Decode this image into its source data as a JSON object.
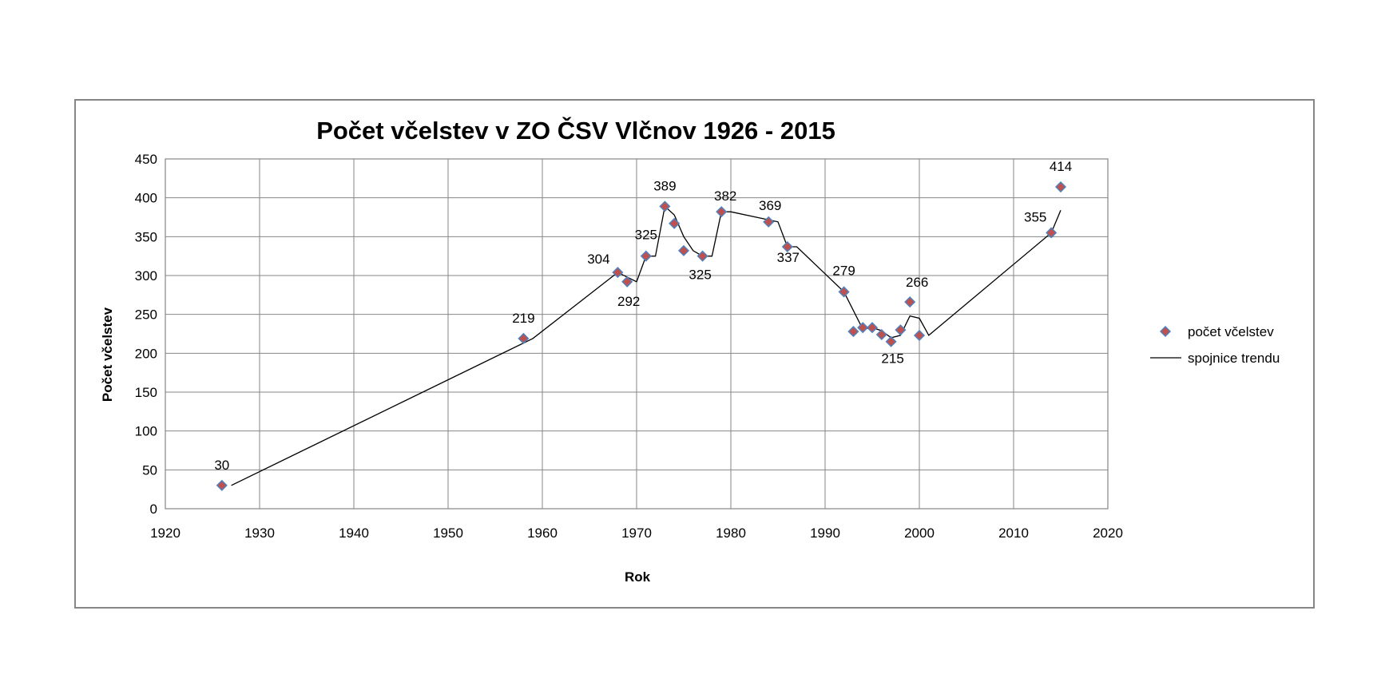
{
  "chart_data": {
    "type": "scatter",
    "title": "Počet včelstev v ZO ČSV Vlčnov 1926 - 2015",
    "xlabel": "Rok",
    "ylabel": "Počet včelstev",
    "xlim": [
      1920,
      2020
    ],
    "ylim": [
      0,
      450
    ],
    "x_ticks": [
      1920,
      1930,
      1940,
      1950,
      1960,
      1970,
      1980,
      1990,
      2000,
      2010,
      2020
    ],
    "y_ticks": [
      0,
      50,
      100,
      150,
      200,
      250,
      300,
      350,
      400,
      450
    ],
    "grid": true,
    "legend_position": "right",
    "marker_color": "#C0504D",
    "marker_stroke": "#4F81BD",
    "trend_color": "#000000",
    "series": [
      {
        "name": "počet včelstev",
        "points": [
          {
            "x": 1926,
            "y": 30,
            "label": "30"
          },
          {
            "x": 1958,
            "y": 219,
            "label": "219"
          },
          {
            "x": 1968,
            "y": 304,
            "label": "304"
          },
          {
            "x": 1969,
            "y": 292,
            "label": "292"
          },
          {
            "x": 1971,
            "y": 325,
            "label": "325"
          },
          {
            "x": 1973,
            "y": 389,
            "label": "389"
          },
          {
            "x": 1974,
            "y": 367
          },
          {
            "x": 1975,
            "y": 332
          },
          {
            "x": 1977,
            "y": 325,
            "label": "325"
          },
          {
            "x": 1979,
            "y": 382,
            "label": "382"
          },
          {
            "x": 1984,
            "y": 369,
            "label": "369"
          },
          {
            "x": 1986,
            "y": 337,
            "label": "337"
          },
          {
            "x": 1992,
            "y": 279,
            "label": "279"
          },
          {
            "x": 1993,
            "y": 228
          },
          {
            "x": 1994,
            "y": 233
          },
          {
            "x": 1995,
            "y": 233
          },
          {
            "x": 1996,
            "y": 224
          },
          {
            "x": 1997,
            "y": 215,
            "label": "215"
          },
          {
            "x": 1998,
            "y": 230
          },
          {
            "x": 1999,
            "y": 266,
            "label": "266"
          },
          {
            "x": 2000,
            "y": 223
          },
          {
            "x": 2014,
            "y": 355,
            "label": "355"
          },
          {
            "x": 2015,
            "y": 414,
            "label": "414"
          }
        ]
      },
      {
        "name": "spojnice trendu",
        "type": "line",
        "points": [
          {
            "x": 1927,
            "y": 30
          },
          {
            "x": 1959,
            "y": 219
          },
          {
            "x": 1968,
            "y": 304
          },
          {
            "x": 1970,
            "y": 292
          },
          {
            "x": 1971,
            "y": 325
          },
          {
            "x": 1972,
            "y": 325
          },
          {
            "x": 1973,
            "y": 389
          },
          {
            "x": 1974,
            "y": 378
          },
          {
            "x": 1975,
            "y": 350
          },
          {
            "x": 1976,
            "y": 332
          },
          {
            "x": 1977,
            "y": 325
          },
          {
            "x": 1978,
            "y": 325
          },
          {
            "x": 1979,
            "y": 382
          },
          {
            "x": 1980,
            "y": 382
          },
          {
            "x": 1985,
            "y": 369
          },
          {
            "x": 1986,
            "y": 337
          },
          {
            "x": 1987,
            "y": 337
          },
          {
            "x": 1992,
            "y": 279
          },
          {
            "x": 1993,
            "y": 255
          },
          {
            "x": 1994,
            "y": 231
          },
          {
            "x": 1995,
            "y": 233
          },
          {
            "x": 1996,
            "y": 229
          },
          {
            "x": 1997,
            "y": 220
          },
          {
            "x": 1998,
            "y": 223
          },
          {
            "x": 1999,
            "y": 248
          },
          {
            "x": 2000,
            "y": 245
          },
          {
            "x": 2001,
            "y": 223
          },
          {
            "x": 2014,
            "y": 355
          },
          {
            "x": 2015,
            "y": 384
          }
        ]
      }
    ]
  }
}
